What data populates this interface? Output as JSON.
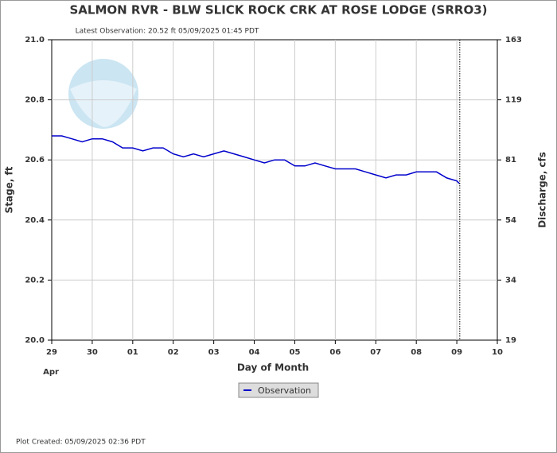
{
  "chart_data": {
    "type": "line",
    "title": "SALMON RVR - BLW SLICK ROCK CRK AT ROSE LODGE  (SRRO3)",
    "subtitle": "Latest Observation: 20.52 ft 05/09/2025 01:45 PDT",
    "xlabel": "Day of Month",
    "xsublabel": "Apr",
    "ylabel": "Stage, ft",
    "y2label": "Discharge, cfs",
    "footer": "Plot Created: 05/09/2025 02:36 PDT",
    "legend": "bottom",
    "grid": true,
    "xlim": [
      "2025-04-29T00:00",
      "2025-05-10T00:00"
    ],
    "xticks": [
      {
        "value": "2025-04-29T00:00",
        "label": "29"
      },
      {
        "value": "2025-04-30T00:00",
        "label": "30"
      },
      {
        "value": "2025-05-01T00:00",
        "label": "01"
      },
      {
        "value": "2025-05-02T00:00",
        "label": "02"
      },
      {
        "value": "2025-05-03T00:00",
        "label": "03"
      },
      {
        "value": "2025-05-04T00:00",
        "label": "04"
      },
      {
        "value": "2025-05-05T00:00",
        "label": "05"
      },
      {
        "value": "2025-05-06T00:00",
        "label": "06"
      },
      {
        "value": "2025-05-07T00:00",
        "label": "07"
      },
      {
        "value": "2025-05-08T00:00",
        "label": "08"
      },
      {
        "value": "2025-05-09T00:00",
        "label": "09"
      },
      {
        "value": "2025-05-10T00:00",
        "label": "10"
      }
    ],
    "ylim": [
      20.0,
      21.0
    ],
    "yticks": [
      {
        "value": 20.0,
        "label": "20.0"
      },
      20.2,
      20.4,
      20.6,
      20.8,
      {
        "value": 21.0,
        "label": "21.0"
      }
    ],
    "y2lim": [
      19,
      163
    ],
    "y2ticks": [
      19,
      34,
      54,
      81,
      119,
      163
    ],
    "x": [
      "2025-04-29T00:00",
      "2025-04-29T06:00",
      "2025-04-29T12:00",
      "2025-04-29T18:00",
      "2025-04-30T00:00",
      "2025-04-30T06:00",
      "2025-04-30T12:00",
      "2025-04-30T18:00",
      "2025-05-01T00:00",
      "2025-05-01T06:00",
      "2025-05-01T12:00",
      "2025-05-01T18:00",
      "2025-05-02T00:00",
      "2025-05-02T06:00",
      "2025-05-02T12:00",
      "2025-05-02T18:00",
      "2025-05-03T00:00",
      "2025-05-03T06:00",
      "2025-05-03T12:00",
      "2025-05-03T18:00",
      "2025-05-04T00:00",
      "2025-05-04T06:00",
      "2025-05-04T12:00",
      "2025-05-04T18:00",
      "2025-05-05T00:00",
      "2025-05-05T06:00",
      "2025-05-05T12:00",
      "2025-05-05T18:00",
      "2025-05-06T00:00",
      "2025-05-06T06:00",
      "2025-05-06T12:00",
      "2025-05-06T18:00",
      "2025-05-07T00:00",
      "2025-05-07T06:00",
      "2025-05-07T12:00",
      "2025-05-07T18:00",
      "2025-05-08T00:00",
      "2025-05-08T06:00",
      "2025-05-08T12:00",
      "2025-05-08T18:00",
      "2025-05-09T00:00",
      "2025-05-09T01:45"
    ],
    "series": [
      {
        "name": "Observation",
        "color": "#0000cc",
        "values": [
          20.68,
          20.68,
          20.67,
          20.66,
          20.67,
          20.67,
          20.66,
          20.64,
          20.64,
          20.63,
          20.64,
          20.64,
          20.62,
          20.61,
          20.62,
          20.61,
          20.62,
          20.63,
          20.62,
          20.61,
          20.6,
          20.59,
          20.6,
          20.6,
          20.58,
          20.58,
          20.59,
          20.58,
          20.57,
          20.57,
          20.57,
          20.56,
          20.55,
          20.54,
          20.55,
          20.55,
          20.56,
          20.56,
          20.56,
          20.54,
          20.53,
          20.52
        ]
      }
    ]
  }
}
